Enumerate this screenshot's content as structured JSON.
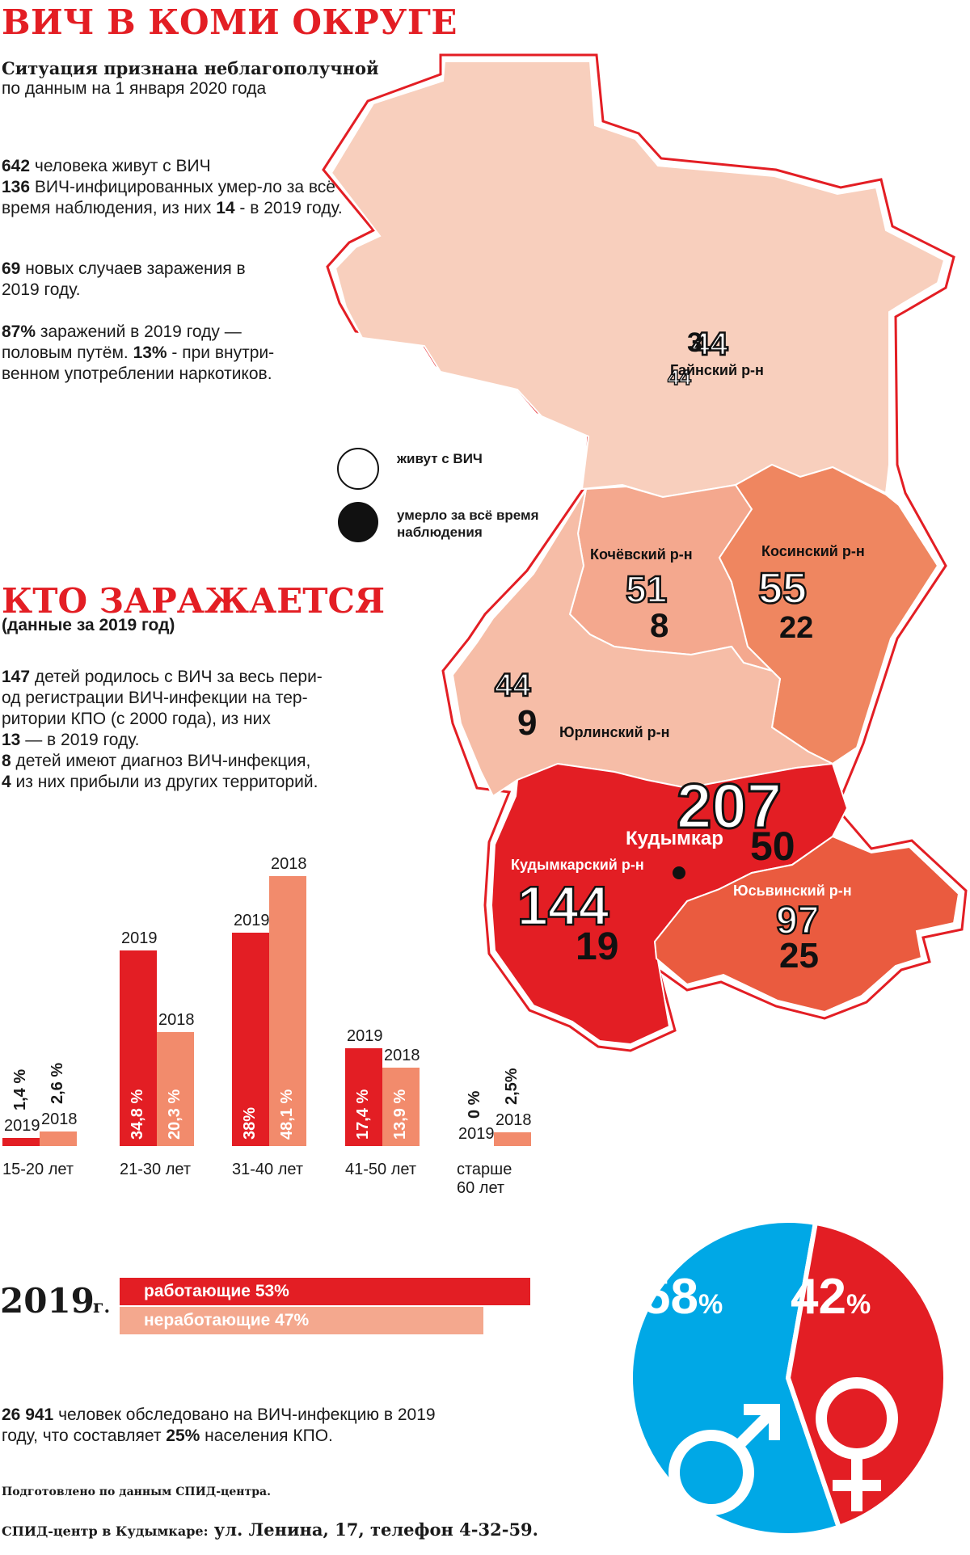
{
  "header": {
    "title": "ВИЧ В КОМИ ОКРУГЕ",
    "subtitle": "Ситуация признана неблагополучной",
    "date_line": "по данным на 1 января 2020 года"
  },
  "facts": {
    "p1_n1": "642",
    "p1_t1": " человека живут с ВИЧ",
    "p1_n2": "136",
    "p1_t2": " ВИЧ-инфицированных умер-ло за всё время наблюдения, из них ",
    "p1_n3": "14",
    "p1_t3": " - в 2019 году.",
    "p2_n1": "69",
    "p2_t1": " новых случаев заражения в 2019 году.",
    "p3_n1": "87%",
    "p3_t1": " заражений в 2019 году — половым путём. ",
    "p3_n2": "13%",
    "p3_t2": " - при внутри-венном употреблении наркотиков."
  },
  "legend": {
    "living": "живут с ВИЧ",
    "dead": "умерло за всё время наблюдения"
  },
  "map": {
    "city": "Кудымкар",
    "districts": [
      {
        "id": "gainsky",
        "name": "Гайнский р-н",
        "living": "44",
        "dead": "3",
        "color": "#f8cfbd"
      },
      {
        "id": "kochevsky",
        "name": "Кочёвский р-н",
        "living": "51",
        "dead": "8",
        "color": "#f4a88e"
      },
      {
        "id": "kosinsky",
        "name": "Косинский р-н",
        "living": "55",
        "dead": "22",
        "color": "#ef8660"
      },
      {
        "id": "yurlinsky",
        "name": "Юрлинский р-н",
        "living": "44",
        "dead": "9",
        "color": "#f6bda7"
      },
      {
        "id": "kudymkarsky",
        "name": "Кудымкарский р-н",
        "living": "144",
        "dead": "19",
        "color": "#e31e24"
      },
      {
        "id": "kudymkar-city",
        "name": "Кудымкар",
        "living": "207",
        "dead": "50",
        "color": "#e31e24"
      },
      {
        "id": "yusvinsky",
        "name": "Юсьвинский р-н",
        "living": "97",
        "dead": "25",
        "color": "#ea5b3f"
      }
    ]
  },
  "section2": {
    "title": "КТО ЗАРАЖАЕТСЯ",
    "subtitle": "(данные за 2019 год)",
    "p1_n1": "147",
    "p1_t1": " детей родилось с ВИЧ за весь пери-од регистрации ВИЧ-инфекции на тер-ритории КПО (с 2000 года), из них ",
    "p1_n2": "13",
    "p1_t2": " — в 2019 году.",
    "p2_n1": "8",
    "p2_t1": " детей имеют диагноз ВИЧ-инфекция, ",
    "p2_n2": "4",
    "p2_t2": " из них прибыли из других территорий."
  },
  "chart_data": [
    {
      "type": "bar",
      "categories": [
        "15-20 лет",
        "21-30 лет",
        "31-40 лет",
        "41-50 лет",
        "старше 60 лет"
      ],
      "series": [
        {
          "name": "2019",
          "values": [
            1.4,
            34.8,
            38,
            17.4,
            0
          ],
          "labels": [
            "1,4 %",
            "34,8 %",
            "38%",
            "17,4 %",
            "0 %"
          ],
          "color": "#e31e24"
        },
        {
          "name": "2018",
          "values": [
            2.6,
            20.3,
            48.1,
            13.9,
            2.5
          ],
          "labels": [
            "2,6 %",
            "20,3 %",
            "48,1 %",
            "13,9 %",
            "2,5%"
          ],
          "color": "#f28b6c"
        }
      ],
      "ylim": [
        0,
        48.1
      ]
    },
    {
      "type": "bar",
      "orientation": "horizontal",
      "year": "2019",
      "year_suffix": "г.",
      "categories": [
        "работающие",
        "неработающие"
      ],
      "values": [
        53,
        47
      ],
      "labels": [
        "работающие 53%",
        "неработающие 47%"
      ],
      "colors": [
        "#e31e24",
        "#f4a88e"
      ]
    },
    {
      "type": "pie",
      "labels": [
        "58%",
        "42%"
      ],
      "values": [
        58,
        42
      ],
      "categories": [
        "male",
        "female"
      ],
      "colors": [
        "#00a8e6",
        "#e31e24"
      ],
      "icons": [
        "male-symbol-icon",
        "female-symbol-icon"
      ]
    }
  ],
  "footer": {
    "tested_n1": "26 941",
    "tested_t1": " человек обследовано на ВИЧ-инфекцию в 2019 году, что составляет ",
    "tested_n2": "25%",
    "tested_t2": " населения КПО.",
    "source": "Подготовлено по данным СПИД-центра.",
    "address_lead": "СПИД-центр в Кудымкаре:",
    "address": " ул. Ленина, 17, телефон 4-32-59."
  }
}
